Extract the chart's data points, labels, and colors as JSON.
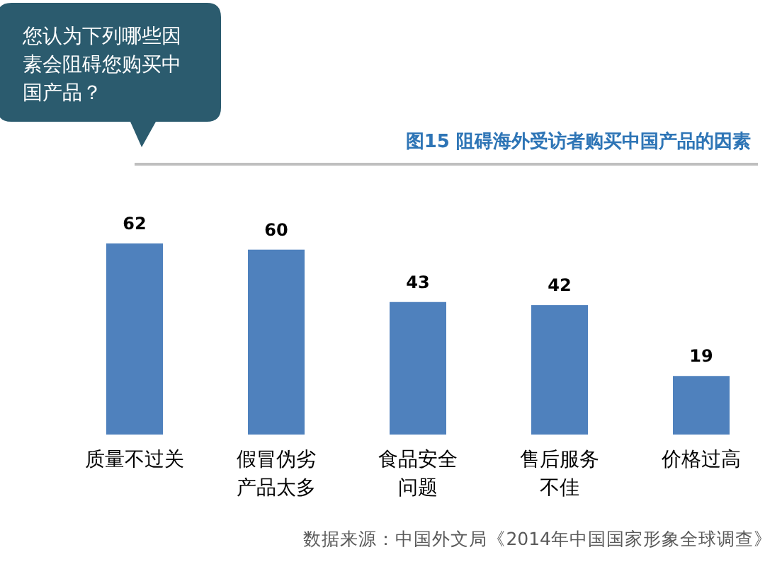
{
  "chart_data": {
    "type": "bar",
    "title": "图15   阻碍海外受访者购买中国产品的因素",
    "categories": [
      "质量不过关",
      "假冒伪劣产品太多",
      "食品安全问题",
      "售后服务不佳",
      "价格过高"
    ],
    "values": [
      62,
      60,
      43,
      42,
      19
    ],
    "color": "#4f81bd",
    "data_labels": true,
    "annotations": [
      "您认为下列哪些因素会阻碍您购买中国产品？",
      "数据来源：中国外文局《2014年中国国家形象全球调查》"
    ]
  }
}
